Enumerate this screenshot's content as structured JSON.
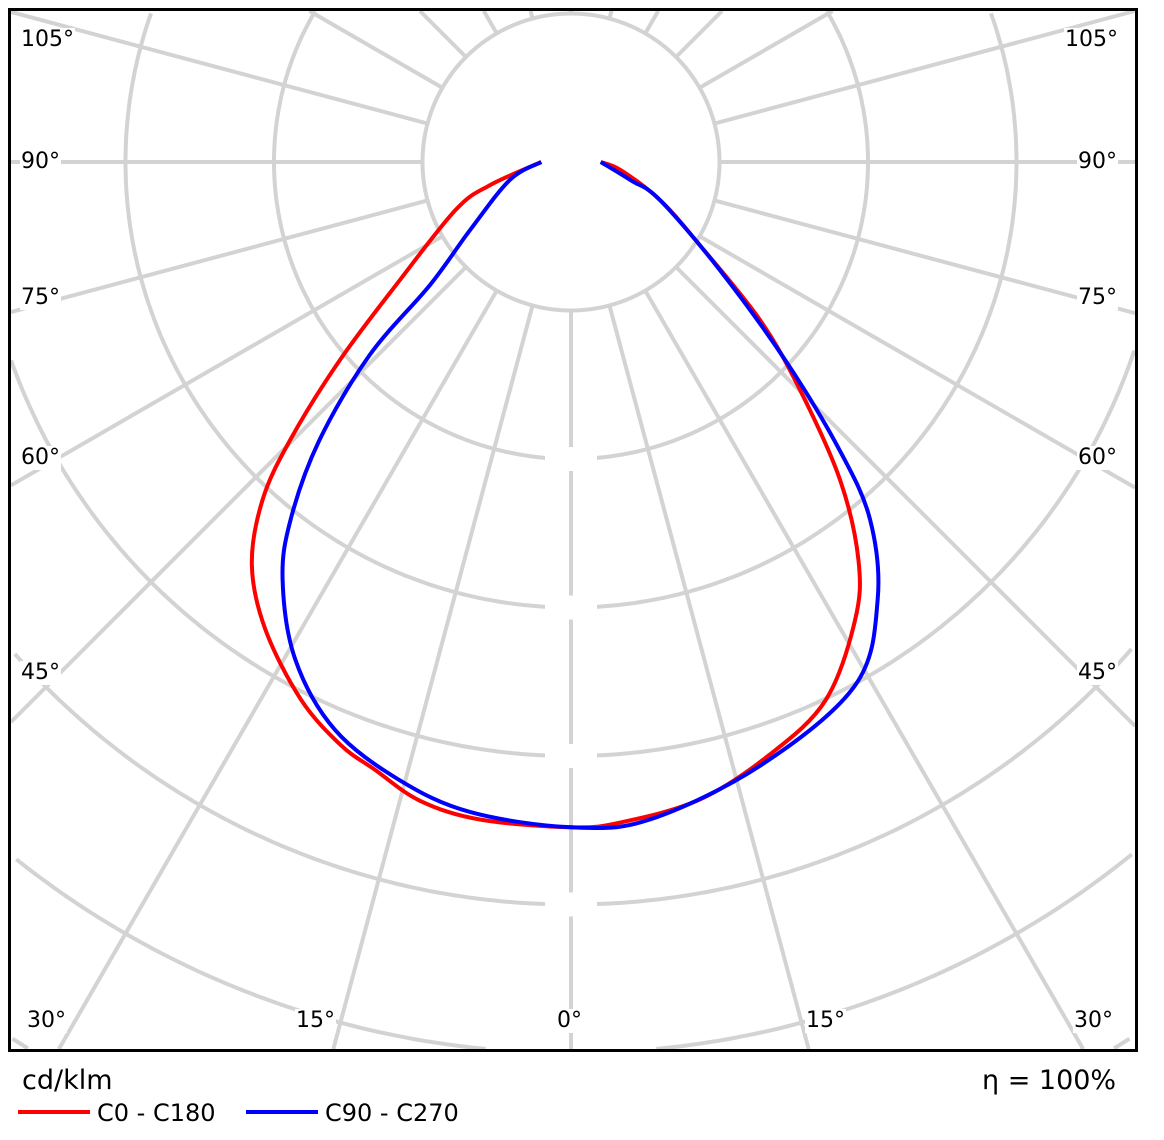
{
  "chart_data": {
    "type": "polar",
    "unit_label": "cd/klm",
    "efficiency_label": "η = 100%",
    "angle_labels_left": [
      "105°",
      "90°",
      "75°",
      "60°",
      "45°"
    ],
    "angle_labels_right": [
      "105°",
      "90°",
      "75°",
      "60°",
      "45°"
    ],
    "angle_labels_bottom": [
      "30°",
      "15°",
      "0°",
      "15°",
      "30°"
    ],
    "spoke_step_deg": 15,
    "rings": [
      1,
      2,
      3,
      4,
      5,
      6,
      7
    ],
    "ring_labels": [
      "",
      "",
      "",
      "",
      "",
      "",
      ""
    ],
    "grid": true,
    "grid_color": "#d3d3d3",
    "legend_position": "bottom-left",
    "series": [
      {
        "name": "C0 - C180",
        "color": "#ff0000",
        "left": [
          [
            0,
            4.48
          ],
          [
            7.9,
            4.47
          ],
          [
            13.3,
            4.42
          ],
          [
            17.9,
            4.3
          ],
          [
            21.6,
            4.22
          ],
          [
            26.7,
            4.05
          ],
          [
            33.2,
            3.76
          ],
          [
            38.4,
            3.46
          ],
          [
            42.4,
            3.08
          ],
          [
            45.3,
            2.66
          ],
          [
            49.4,
            2.05
          ],
          [
            55.4,
            1.4
          ],
          [
            67.5,
            0.84
          ],
          [
            74,
            0.57
          ],
          [
            90,
            0.2
          ]
        ],
        "right": [
          [
            0,
            4.48
          ],
          [
            4.3,
            4.46
          ],
          [
            11.4,
            4.38
          ],
          [
            18.5,
            4.21
          ],
          [
            25.3,
            4.01
          ],
          [
            31.8,
            3.63
          ],
          [
            35.8,
            3.31
          ],
          [
            40.2,
            2.81
          ],
          [
            45.1,
            2.18
          ],
          [
            50.1,
            1.66
          ],
          [
            57.2,
            1.03
          ],
          [
            66.9,
            0.65
          ],
          [
            80.7,
            0.34
          ],
          [
            90,
            0.2
          ]
        ]
      },
      {
        "name": "C90 - C270",
        "color": "#0000ff",
        "left": [
          [
            0,
            4.48
          ],
          [
            8.8,
            4.43
          ],
          [
            15.5,
            4.32
          ],
          [
            22.6,
            4.14
          ],
          [
            29,
            3.83
          ],
          [
            34.6,
            3.42
          ],
          [
            38.1,
            3.06
          ],
          [
            42.1,
            2.53
          ],
          [
            46.2,
            1.88
          ],
          [
            48.9,
            1.26
          ],
          [
            56,
            0.82
          ],
          [
            73.6,
            0.43
          ],
          [
            90,
            0.2
          ]
        ],
        "right": [
          [
            0,
            4.48
          ],
          [
            6.8,
            4.46
          ],
          [
            17.4,
            4.26
          ],
          [
            28.5,
            4.01
          ],
          [
            35,
            3.6
          ],
          [
            39.9,
            3.14
          ],
          [
            43,
            2.65
          ],
          [
            47.2,
            1.97
          ],
          [
            54,
            1.24
          ],
          [
            66.9,
            0.65
          ],
          [
            73,
            0.42
          ],
          [
            90,
            0.2
          ]
        ]
      }
    ]
  }
}
